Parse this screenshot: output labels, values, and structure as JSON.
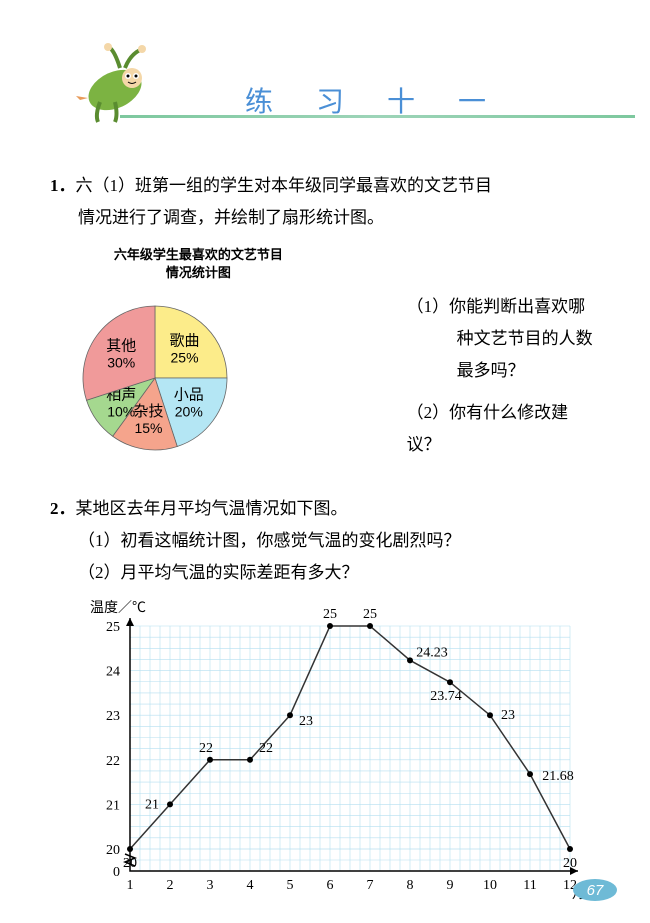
{
  "header": {
    "title": "练 习 十 一"
  },
  "question1": {
    "number": "1．",
    "text_line1": "六（1）班第一组的学生对本年级同学最喜欢的文艺节目",
    "text_line2": "情况进行了调查，并绘制了扇形统计图。",
    "pie_title_line1": "六年级学生最喜欢的文艺节目",
    "pie_title_line2": "情况统计图",
    "sub_q1_num": "（1）",
    "sub_q1_line1": "你能判断出喜欢哪",
    "sub_q1_line2": "种文艺节目的人数",
    "sub_q1_line3": "最多吗？",
    "sub_q2_num": "（2）",
    "sub_q2_text": "你有什么修改建议？"
  },
  "pie_chart": {
    "slices": [
      {
        "label": "歌曲",
        "pct": "25%",
        "value": 25,
        "color": "#fcec8a"
      },
      {
        "label": "小品",
        "pct": "20%",
        "value": 20,
        "color": "#b4e6f4"
      },
      {
        "label": "杂技",
        "pct": "15%",
        "value": 15,
        "color": "#f5a48c"
      },
      {
        "label": "相声",
        "pct": "10%",
        "value": 10,
        "color": "#a5d88f"
      },
      {
        "label": "其他",
        "pct": "30%",
        "value": 30,
        "color": "#f09a9a"
      }
    ]
  },
  "question2": {
    "number": "2．",
    "text": "某地区去年月平均气温情况如下图。",
    "sub_q1": "（1）初看这幅统计图，你感觉气温的变化剧烈吗？",
    "sub_q2": "（2）月平均气温的实际差距有多大？"
  },
  "line_chart": {
    "y_label": "温度／℃",
    "x_label": "月份",
    "y_min": 20,
    "y_max": 25,
    "y_tick_step": 1,
    "x_values": [
      1,
      2,
      3,
      4,
      5,
      6,
      7,
      8,
      9,
      10,
      11,
      12
    ],
    "data": [
      20,
      21,
      22,
      22,
      23,
      25,
      25,
      24.23,
      23.74,
      23,
      21.68,
      20
    ],
    "line_color": "#333333",
    "grid_color": "#b5dff0",
    "background": "#ffffff"
  },
  "page_number": "67"
}
